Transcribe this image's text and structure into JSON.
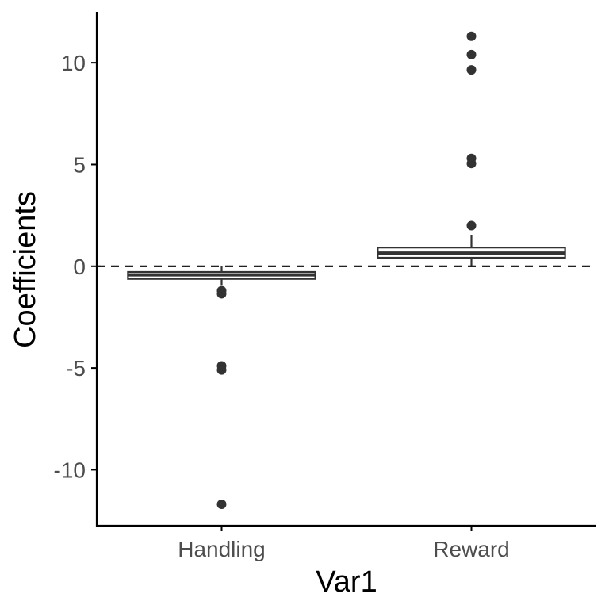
{
  "chart_data": {
    "type": "boxplot",
    "xlabel": "Var1",
    "ylabel": "Coefficients",
    "categories": [
      "Handling",
      "Reward"
    ],
    "ylim": [
      -12.75,
      12.5
    ],
    "yticks": [
      -10,
      -5,
      0,
      5,
      10
    ],
    "ytick_labels": [
      "-10",
      "-5",
      "0",
      "5",
      "10"
    ],
    "grid": false,
    "reference_line": {
      "y": 0,
      "style": "dashed"
    },
    "boxes": [
      {
        "category": "Handling",
        "lower_whisker": -0.95,
        "q1": -0.62,
        "median": -0.42,
        "q3": -0.28,
        "upper_whisker": 0,
        "outliers": [
          -1.2,
          -1.35,
          -4.9,
          -5.1,
          -11.7
        ]
      },
      {
        "category": "Reward",
        "lower_whisker": 0,
        "q1": 0.42,
        "median": 0.65,
        "q3": 0.92,
        "upper_whisker": 1.55,
        "outliers": [
          2.0,
          5.05,
          5.3,
          9.65,
          10.4,
          11.3
        ]
      }
    ],
    "colors": {
      "box_stroke": "#333333",
      "box_fill": "#ffffff",
      "point": "#333333",
      "axis": "#000000",
      "tick_text": "#4d4d4d"
    }
  }
}
